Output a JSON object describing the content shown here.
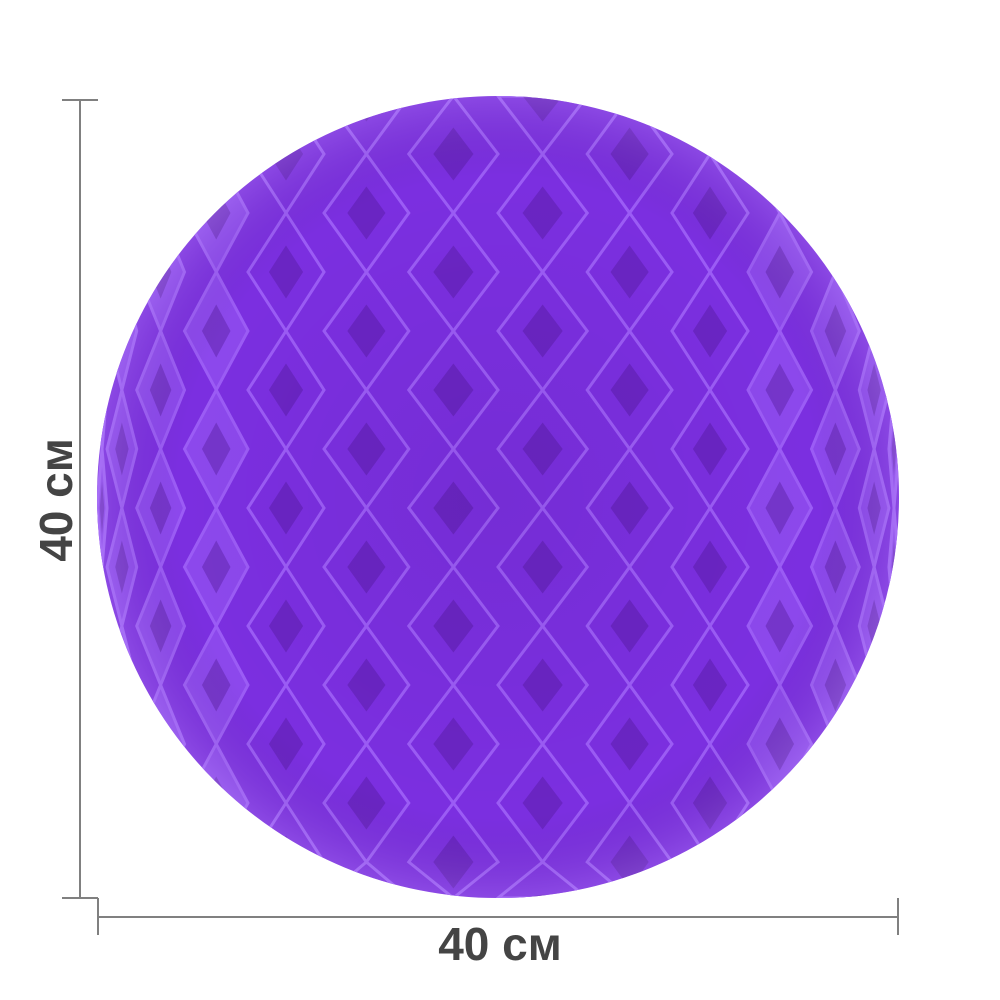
{
  "product": {
    "name_icon": "honeycomb-paper-ball",
    "color": "#7b2fe0",
    "color_light": "#9b5cf5",
    "color_dark": "#4a148c"
  },
  "dimensions": {
    "width_label": "40 см",
    "height_label": "40 см",
    "line_color": "#808080",
    "text_color": "#444444"
  }
}
